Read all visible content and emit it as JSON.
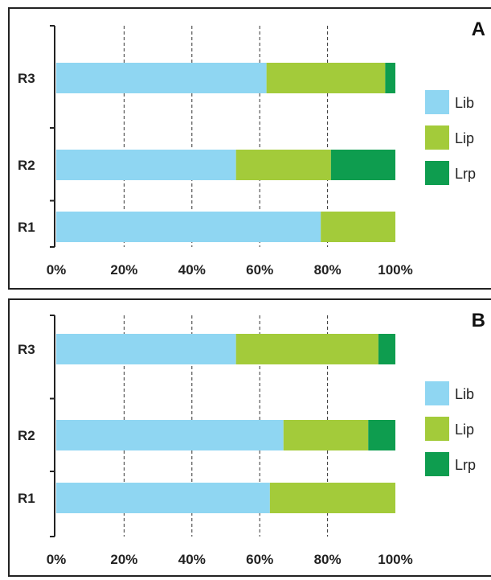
{
  "chart_data": [
    {
      "type": "bar",
      "orientation": "horizontal",
      "stacked": true,
      "panel": "A",
      "categories": [
        "R1",
        "R2",
        "R3"
      ],
      "series": [
        {
          "name": "Lib",
          "values": [
            78,
            53,
            62
          ],
          "color": "#8fd6f2"
        },
        {
          "name": "Lip",
          "values": [
            22,
            28,
            35
          ],
          "color": "#a3cb3a"
        },
        {
          "name": "Lrp",
          "values": [
            0,
            19,
            3
          ],
          "color": "#0e9d4f"
        }
      ],
      "xlim": [
        0,
        100
      ],
      "xticks": [
        "0%",
        "20%",
        "40%",
        "60%",
        "80%",
        "100%"
      ],
      "grid": "vertical dashed",
      "legend": "right"
    },
    {
      "type": "bar",
      "orientation": "horizontal",
      "stacked": true,
      "panel": "B",
      "categories": [
        "R1",
        "R2",
        "R3"
      ],
      "series": [
        {
          "name": "Lib",
          "values": [
            63,
            67,
            53
          ],
          "color": "#8fd6f2"
        },
        {
          "name": "Lip",
          "values": [
            37,
            25,
            42
          ],
          "color": "#a3cb3a"
        },
        {
          "name": "Lrp",
          "values": [
            0,
            8,
            5
          ],
          "color": "#0e9d4f"
        }
      ],
      "xlim": [
        0,
        100
      ],
      "xticks": [
        "0%",
        "20%",
        "40%",
        "60%",
        "80%",
        "100%"
      ],
      "grid": "vertical dashed",
      "legend": "right"
    }
  ]
}
